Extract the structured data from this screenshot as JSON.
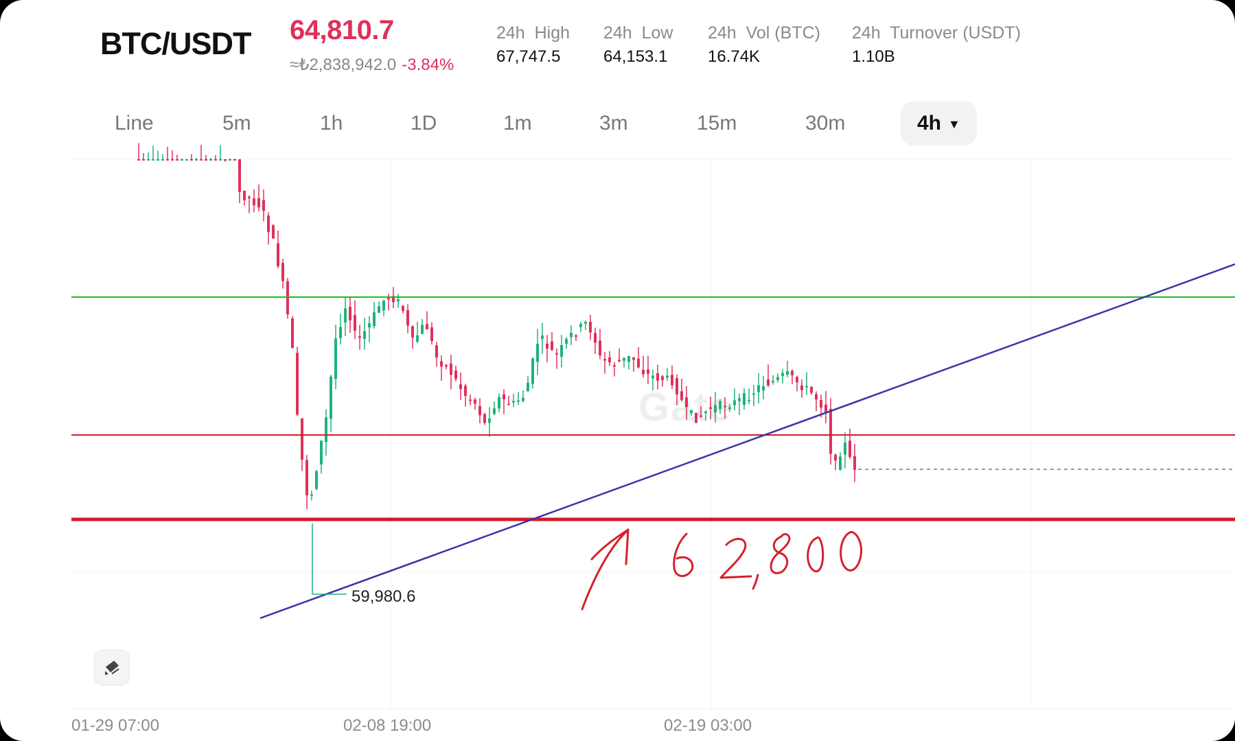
{
  "header": {
    "pair": "BTC/USDT",
    "last_price": "64,810.7",
    "converted": "≈₺2,838,942.0",
    "change": "-3.84%",
    "stats": [
      {
        "label": "24h  High",
        "value": "67,747.5"
      },
      {
        "label": "24h  Low",
        "value": "64,153.1"
      },
      {
        "label": "24h  Vol (BTC)",
        "value": "16.74K"
      },
      {
        "label": "24h  Turnover (USDT)",
        "value": "1.10B"
      }
    ]
  },
  "tabs": [
    "Line",
    "5m",
    "1h",
    "1D",
    "1m",
    "3m",
    "15m",
    "30m",
    "4h"
  ],
  "active_tab": "4h",
  "chart": {
    "x_labels": [
      "01-29 07:00",
      "02-08 19:00",
      "02-19 03:00"
    ],
    "low_marker": "59,980.6",
    "annotation": "62,800",
    "watermark": "Gate",
    "colors": {
      "up": "#1db37a",
      "down": "#e0305a",
      "resistance": "#22bb22",
      "support": "#d41a2a",
      "trend": "#3a34a8"
    }
  },
  "icons": {
    "drawing_tool": "drawing-tool-icon",
    "dropdown": "chevron-down-icon"
  }
}
